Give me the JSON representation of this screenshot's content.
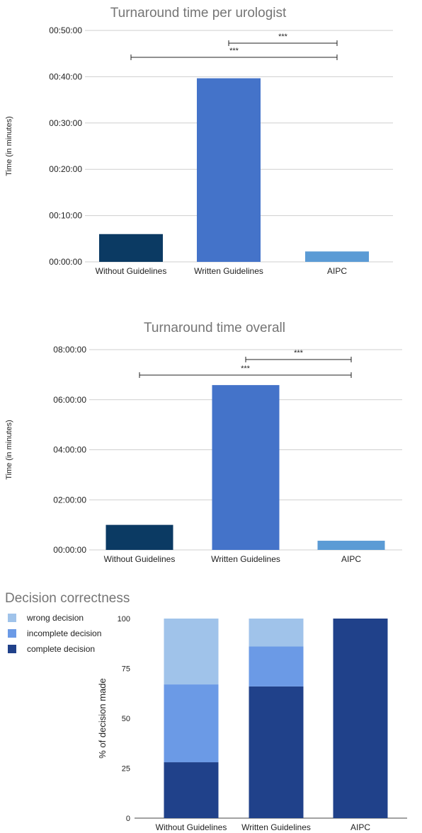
{
  "chart_data": [
    {
      "type": "bar",
      "title": "Turnaround time per urologist",
      "ylabel": "Time (in minutes)",
      "xlabel": "",
      "categories": [
        "Without Guidelines",
        "Written Guidelines",
        "AIPC"
      ],
      "values": [
        "00:06:00",
        "00:39:40",
        "00:02:15"
      ],
      "yticks": [
        "00:00:00",
        "00:10:00",
        "00:20:00",
        "00:30:00",
        "00:40:00",
        "00:50:00"
      ],
      "ylim": [
        "00:00:00",
        "00:50:00"
      ],
      "grid": true,
      "colors": [
        "#0b3a63",
        "#4473c9",
        "#5b9bd5"
      ],
      "significance": [
        {
          "from": "Written Guidelines",
          "to": "AIPC",
          "label": "***"
        },
        {
          "from": "Without Guidelines",
          "to": "AIPC",
          "label": "***"
        }
      ]
    },
    {
      "type": "bar",
      "title": "Turnaround time overall",
      "ylabel": "Time (in minutes)",
      "xlabel": "",
      "categories": [
        "Without Guidelines",
        "Written Guidelines",
        "AIPC"
      ],
      "values": [
        "01:00:00",
        "06:35:00",
        "00:22:00"
      ],
      "yticks": [
        "00:00:00",
        "02:00:00",
        "04:00:00",
        "06:00:00",
        "08:00:00"
      ],
      "ylim": [
        "00:00:00",
        "08:00:00"
      ],
      "grid": true,
      "colors": [
        "#0b3a63",
        "#4473c9",
        "#5b9bd5"
      ],
      "significance": [
        {
          "from": "Written Guidelines",
          "to": "AIPC",
          "label": "***"
        },
        {
          "from": "Without Guidelines",
          "to": "AIPC",
          "label": "***"
        }
      ]
    },
    {
      "type": "bar",
      "stacked": true,
      "title": "Decision correctness",
      "ylabel": "% of decision made",
      "xlabel": "",
      "categories": [
        "Without Guidelines",
        "Written Guidelines",
        "AIPC"
      ],
      "yticks": [
        0,
        25,
        50,
        75,
        100
      ],
      "ylim": [
        0,
        100
      ],
      "grid": false,
      "legend_position": "top-left",
      "series": [
        {
          "name": "complete decision",
          "color": "#20418a",
          "values": [
            28,
            66,
            100
          ]
        },
        {
          "name": "incomplete decision",
          "color": "#6b9ae6",
          "values": [
            39,
            20,
            0
          ]
        },
        {
          "name": "wrong decision",
          "color": "#a0c3ea",
          "values": [
            33,
            14,
            0
          ]
        }
      ],
      "legend_order": [
        "wrong decision",
        "incomplete decision",
        "complete decision"
      ]
    }
  ]
}
